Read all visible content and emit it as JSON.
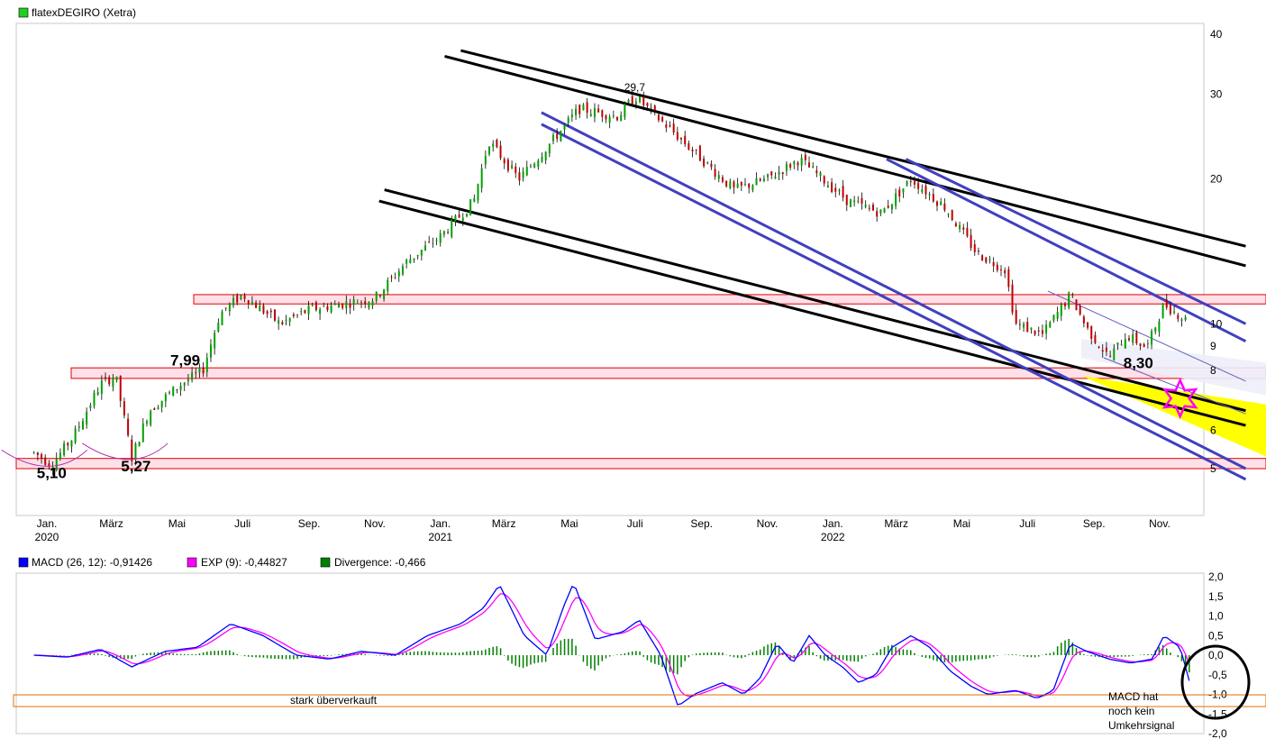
{
  "chart_data": [
    {
      "type": "candlestick",
      "title": "flatexDEGIRO (Xetra)",
      "legend_color": "#22cc22",
      "y_scale": "log",
      "ylim": [
        4.5,
        42
      ],
      "y_ticks": [
        "40",
        "30",
        "20",
        "10",
        "9",
        "8",
        "6",
        "5"
      ],
      "y_tick_values": [
        40,
        30,
        20,
        10,
        9,
        8,
        6,
        5
      ],
      "x_ticks": [
        {
          "label": "Jan.",
          "year": "2020",
          "date": "2020-01-01"
        },
        {
          "label": "März",
          "year": "",
          "date": "2020-03-01"
        },
        {
          "label": "Mai",
          "year": "",
          "date": "2020-05-01"
        },
        {
          "label": "Juli",
          "year": "",
          "date": "2020-07-01"
        },
        {
          "label": "Sep.",
          "year": "",
          "date": "2020-09-01"
        },
        {
          "label": "Nov.",
          "year": "",
          "date": "2020-11-01"
        },
        {
          "label": "Jan.",
          "year": "2021",
          "date": "2021-01-01"
        },
        {
          "label": "März",
          "year": "",
          "date": "2021-03-01"
        },
        {
          "label": "Mai",
          "year": "",
          "date": "2021-05-01"
        },
        {
          "label": "Juli",
          "year": "",
          "date": "2021-07-01"
        },
        {
          "label": "Sep.",
          "year": "",
          "date": "2021-09-01"
        },
        {
          "label": "Nov.",
          "year": "",
          "date": "2021-11-01"
        },
        {
          "label": "Jan.",
          "year": "2022",
          "date": "2022-01-01"
        },
        {
          "label": "März",
          "year": "",
          "date": "2022-03-01"
        },
        {
          "label": "Mai",
          "year": "",
          "date": "2022-05-01"
        },
        {
          "label": "Juli",
          "year": "",
          "date": "2022-07-01"
        },
        {
          "label": "Sep.",
          "year": "",
          "date": "2022-09-01"
        },
        {
          "label": "Nov.",
          "year": "",
          "date": "2022-11-01"
        }
      ],
      "price_path": [
        {
          "date": "2019-12-20",
          "close": 5.4
        },
        {
          "date": "2020-01-05",
          "close": 5.1
        },
        {
          "date": "2020-01-25",
          "close": 5.8
        },
        {
          "date": "2020-02-20",
          "close": 7.5
        },
        {
          "date": "2020-03-05",
          "close": 7.8
        },
        {
          "date": "2020-03-20",
          "close": 5.27
        },
        {
          "date": "2020-04-05",
          "close": 6.6
        },
        {
          "date": "2020-05-05",
          "close": 7.5
        },
        {
          "date": "2020-05-25",
          "close": 7.99
        },
        {
          "date": "2020-06-10",
          "close": 10.5
        },
        {
          "date": "2020-07-01",
          "close": 11.5
        },
        {
          "date": "2020-08-05",
          "close": 10.0
        },
        {
          "date": "2020-09-01",
          "close": 10.7
        },
        {
          "date": "2020-10-01",
          "close": 11.0
        },
        {
          "date": "2020-11-01",
          "close": 11.3
        },
        {
          "date": "2020-12-01",
          "close": 13.5
        },
        {
          "date": "2021-01-01",
          "close": 15.2
        },
        {
          "date": "2021-02-01",
          "close": 18.0
        },
        {
          "date": "2021-02-15",
          "close": 24.0
        },
        {
          "date": "2021-03-15",
          "close": 20.0
        },
        {
          "date": "2021-04-15",
          "close": 24.0
        },
        {
          "date": "2021-05-10",
          "close": 28.0
        },
        {
          "date": "2021-06-15",
          "close": 27.0
        },
        {
          "date": "2021-07-01",
          "close": 29.7
        },
        {
          "date": "2021-08-10",
          "close": 24.5
        },
        {
          "date": "2021-09-01",
          "close": 22.0
        },
        {
          "date": "2021-10-01",
          "close": 19.0
        },
        {
          "date": "2021-11-01",
          "close": 20.0
        },
        {
          "date": "2021-12-01",
          "close": 22.0
        },
        {
          "date": "2022-01-15",
          "close": 18.0
        },
        {
          "date": "2022-02-15",
          "close": 17.0
        },
        {
          "date": "2022-03-15",
          "close": 20.0
        },
        {
          "date": "2022-04-15",
          "close": 17.5
        },
        {
          "date": "2022-05-15",
          "close": 14.0
        },
        {
          "date": "2022-06-10",
          "close": 13.0
        },
        {
          "date": "2022-06-20",
          "close": 10.0
        },
        {
          "date": "2022-07-15",
          "close": 9.5
        },
        {
          "date": "2022-08-10",
          "close": 11.5
        },
        {
          "date": "2022-08-25",
          "close": 9.8
        },
        {
          "date": "2022-09-15",
          "close": 8.5
        },
        {
          "date": "2022-10-01",
          "close": 9.5
        },
        {
          "date": "2022-10-20",
          "close": 8.9
        },
        {
          "date": "2022-11-05",
          "close": 11.0
        },
        {
          "date": "2022-11-25",
          "close": 10.2
        }
      ],
      "support_zones": [
        {
          "low": 5.0,
          "high": 5.25
        },
        {
          "low": 7.7,
          "high": 8.1
        },
        {
          "low": 11.0,
          "high": 11.5
        }
      ],
      "zone_color": "#ffe0e8",
      "zone_border": "#e00000",
      "annotations": [
        {
          "text": "5,10",
          "price": 5.1
        },
        {
          "text": "5,27",
          "price": 5.27
        },
        {
          "text": "7,99",
          "price": 7.99
        },
        {
          "text": "29,7",
          "price": 29.7
        },
        {
          "text": "8,30",
          "price": 8.3
        }
      ],
      "trend_color_black": "#000000",
      "trend_color_blue": "#4040c0",
      "highlight_yellow": "#ffff00"
    },
    {
      "type": "line",
      "series": [
        {
          "name": "MACD (26, 12): -0,91426",
          "color": "#0000ff"
        },
        {
          "name": "EXP (9): -0,44827",
          "color": "#ff00ff"
        },
        {
          "name": "Divergence: -0,466",
          "color": "#008000"
        }
      ],
      "ylim": [
        -2.0,
        2.0
      ],
      "y_ticks": [
        "2,0",
        "1,5",
        "1,0",
        "0,5",
        "0,0",
        "-0,5",
        "-1,0",
        "-1,5",
        "-2,0"
      ],
      "y_tick_values": [
        2.0,
        1.5,
        1.0,
        0.5,
        0.0,
        -0.5,
        -1.0,
        -1.5,
        -2.0
      ],
      "macd_path": [
        {
          "date": "2019-12-20",
          "v": 0.0
        },
        {
          "date": "2020-01-20",
          "v": -0.05
        },
        {
          "date": "2020-02-20",
          "v": 0.15
        },
        {
          "date": "2020-03-20",
          "v": -0.3
        },
        {
          "date": "2020-04-20",
          "v": 0.1
        },
        {
          "date": "2020-05-20",
          "v": 0.2
        },
        {
          "date": "2020-06-20",
          "v": 0.8
        },
        {
          "date": "2020-07-20",
          "v": 0.5
        },
        {
          "date": "2020-08-20",
          "v": 0.0
        },
        {
          "date": "2020-09-20",
          "v": -0.1
        },
        {
          "date": "2020-10-20",
          "v": 0.1
        },
        {
          "date": "2020-11-20",
          "v": 0.0
        },
        {
          "date": "2020-12-20",
          "v": 0.5
        },
        {
          "date": "2021-01-20",
          "v": 0.8
        },
        {
          "date": "2021-02-10",
          "v": 1.2
        },
        {
          "date": "2021-02-25",
          "v": 1.8
        },
        {
          "date": "2021-03-20",
          "v": 0.5
        },
        {
          "date": "2021-04-10",
          "v": 0.0
        },
        {
          "date": "2021-04-25",
          "v": 1.2
        },
        {
          "date": "2021-05-05",
          "v": 1.85
        },
        {
          "date": "2021-05-25",
          "v": 0.4
        },
        {
          "date": "2021-06-20",
          "v": 0.6
        },
        {
          "date": "2021-07-05",
          "v": 0.9
        },
        {
          "date": "2021-07-25",
          "v": 0.0
        },
        {
          "date": "2021-08-10",
          "v": -1.3
        },
        {
          "date": "2021-08-25",
          "v": -1.0
        },
        {
          "date": "2021-09-20",
          "v": -0.7
        },
        {
          "date": "2021-10-10",
          "v": -1.0
        },
        {
          "date": "2021-10-25",
          "v": -0.6
        },
        {
          "date": "2021-11-10",
          "v": 0.3
        },
        {
          "date": "2021-11-25",
          "v": -0.2
        },
        {
          "date": "2021-12-10",
          "v": 0.5
        },
        {
          "date": "2021-12-25",
          "v": 0.0
        },
        {
          "date": "2022-01-10",
          "v": -0.3
        },
        {
          "date": "2022-01-25",
          "v": -0.7
        },
        {
          "date": "2022-02-10",
          "v": -0.5
        },
        {
          "date": "2022-02-25",
          "v": 0.2
        },
        {
          "date": "2022-03-15",
          "v": 0.5
        },
        {
          "date": "2022-04-01",
          "v": 0.2
        },
        {
          "date": "2022-04-20",
          "v": -0.4
        },
        {
          "date": "2022-05-10",
          "v": -0.8
        },
        {
          "date": "2022-05-25",
          "v": -1.0
        },
        {
          "date": "2022-06-20",
          "v": -0.9
        },
        {
          "date": "2022-07-10",
          "v": -1.1
        },
        {
          "date": "2022-07-25",
          "v": -0.9
        },
        {
          "date": "2022-08-10",
          "v": 0.3
        },
        {
          "date": "2022-08-25",
          "v": 0.1
        },
        {
          "date": "2022-09-15",
          "v": -0.1
        },
        {
          "date": "2022-10-05",
          "v": -0.2
        },
        {
          "date": "2022-10-25",
          "v": -0.1
        },
        {
          "date": "2022-11-05",
          "v": 0.5
        },
        {
          "date": "2022-11-20",
          "v": 0.2
        },
        {
          "date": "2022-12-01",
          "v": -0.9
        }
      ],
      "oversold_label": "stark überverkauft",
      "oversold_value": -1.15,
      "oversold_color": "#e07000",
      "note_lines": [
        "MACD hat",
        "noch kein",
        "Umkehrsignal"
      ]
    }
  ]
}
